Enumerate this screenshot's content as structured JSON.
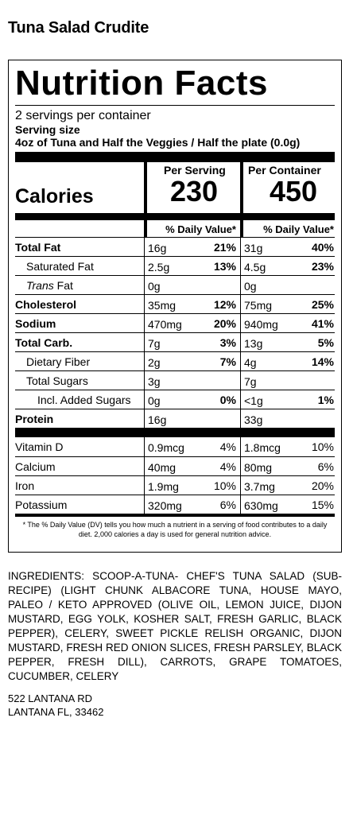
{
  "product_name": "Tuna Salad Crudite",
  "label": {
    "title": "Nutrition Facts",
    "servings_per_container": "2 servings per container",
    "serving_size_label": "Serving size",
    "serving_size_value": "4oz of Tuna and Half the Veggies / Half the plate (0.0g)",
    "per_serving_label": "Per Serving",
    "per_container_label": "Per Container",
    "calories_label": "Calories",
    "calories_serving": "230",
    "calories_container": "450",
    "dv_header": "% Daily Value*",
    "nutrients": [
      {
        "name": "Total Fat",
        "bold": true,
        "indent": 0,
        "s_amt": "16g",
        "s_pct": "21%",
        "c_amt": "31g",
        "c_pct": "40%"
      },
      {
        "name": "Saturated Fat",
        "bold": false,
        "indent": 1,
        "s_amt": "2.5g",
        "s_pct": "13%",
        "c_amt": "4.5g",
        "c_pct": "23%"
      },
      {
        "name": "Trans Fat",
        "bold": false,
        "indent": 1,
        "s_amt": "0g",
        "s_pct": "",
        "c_amt": "0g",
        "c_pct": ""
      },
      {
        "name": "Cholesterol",
        "bold": true,
        "indent": 0,
        "s_amt": "35mg",
        "s_pct": "12%",
        "c_amt": "75mg",
        "c_pct": "25%"
      },
      {
        "name": "Sodium",
        "bold": true,
        "indent": 0,
        "s_amt": "470mg",
        "s_pct": "20%",
        "c_amt": "940mg",
        "c_pct": "41%"
      },
      {
        "name": "Total Carb.",
        "bold": true,
        "indent": 0,
        "s_amt": "7g",
        "s_pct": "3%",
        "c_amt": "13g",
        "c_pct": "5%"
      },
      {
        "name": "Dietary Fiber",
        "bold": false,
        "indent": 1,
        "s_amt": "2g",
        "s_pct": "7%",
        "c_amt": "4g",
        "c_pct": "14%"
      },
      {
        "name": "Total Sugars",
        "bold": false,
        "indent": 1,
        "s_amt": "3g",
        "s_pct": "",
        "c_amt": "7g",
        "c_pct": ""
      },
      {
        "name": "Incl. Added Sugars",
        "bold": false,
        "indent": 2,
        "s_amt": "0g",
        "s_pct": "0%",
        "c_amt": "<1g",
        "c_pct": "1%"
      },
      {
        "name": "Protein",
        "bold": true,
        "indent": 0,
        "s_amt": "16g",
        "s_pct": "",
        "c_amt": "33g",
        "c_pct": ""
      }
    ],
    "vitamins": [
      {
        "name": "Vitamin D",
        "s_amt": "0.9mcg",
        "s_pct": "4%",
        "c_amt": "1.8mcg",
        "c_pct": "10%"
      },
      {
        "name": "Calcium",
        "s_amt": "40mg",
        "s_pct": "4%",
        "c_amt": "80mg",
        "c_pct": "6%"
      },
      {
        "name": "Iron",
        "s_amt": "1.9mg",
        "s_pct": "10%",
        "c_amt": "3.7mg",
        "c_pct": "20%"
      },
      {
        "name": "Potassium",
        "s_amt": "320mg",
        "s_pct": "6%",
        "c_amt": "630mg",
        "c_pct": "15%"
      }
    ],
    "footnote": "* The % Daily Value (DV) tells you how much a nutrient in a serving of food contributes to a daily diet. 2,000 calories a day is used for general nutrition advice."
  },
  "ingredients": "INGREDIENTS: SCOOP-A-TUNA- CHEF'S TUNA SALAD (SUB-RECIPE) (LIGHT CHUNK ALBACORE TUNA, HOUSE MAYO, PALEO / KETO APPROVED (OLIVE OIL, LEMON JUICE, DIJON MUSTARD, EGG YOLK, KOSHER SALT, FRESH GARLIC, BLACK PEPPER), CELERY, SWEET PICKLE RELISH ORGANIC, DIJON MUSTARD, FRESH RED ONION SLICES, FRESH PARSLEY, BLACK PEPPER, FRESH DILL), CARROTS, GRAPE TOMATOES, CUCUMBER, CELERY",
  "address": {
    "line1": "522 LANTANA RD",
    "line2": "LANTANA FL, 33462"
  }
}
